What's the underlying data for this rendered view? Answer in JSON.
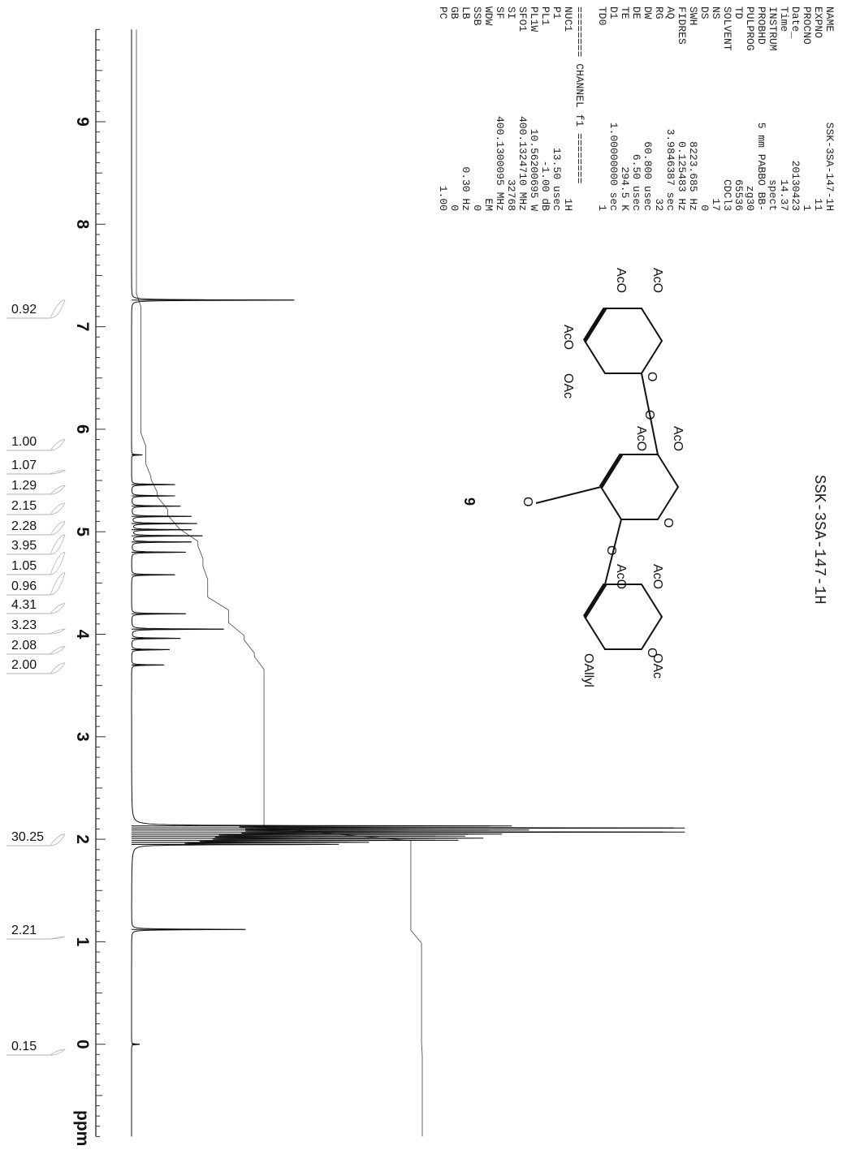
{
  "title": "SSK-3SA-147-1H",
  "acquisition_params": [
    {
      "key": "NAME",
      "value": "SSK-3SA-147-1H"
    },
    {
      "key": "EXPNO",
      "value": "11"
    },
    {
      "key": "PROCNO",
      "value": "1"
    },
    {
      "key": "Date_",
      "value": "20130423"
    },
    {
      "key": "Time",
      "value": "14.37"
    },
    {
      "key": "INSTRUM",
      "value": "spect"
    },
    {
      "key": "PROBHD",
      "value": "5 mm PABBO BB-"
    },
    {
      "key": "PULPROG",
      "value": "zg30"
    },
    {
      "key": "TD",
      "value": "65536"
    },
    {
      "key": "SOLVENT",
      "value": "CDCl3"
    },
    {
      "key": "NS",
      "value": "17"
    },
    {
      "key": "DS",
      "value": "0"
    },
    {
      "key": "SWH",
      "value": "8223.685 Hz"
    },
    {
      "key": "FIDRES",
      "value": "0.125483 Hz"
    },
    {
      "key": "AQ",
      "value": "3.9846387 sec"
    },
    {
      "key": "RG",
      "value": "32"
    },
    {
      "key": "DW",
      "value": "60.800 usec"
    },
    {
      "key": "DE",
      "value": "6.50 usec"
    },
    {
      "key": "TE",
      "value": "294.5 K"
    },
    {
      "key": "D1",
      "value": "1.00000000 sec"
    },
    {
      "key": "TD0",
      "value": "1"
    }
  ],
  "channel_header": "======== CHANNEL f1 ========",
  "channel_params": [
    {
      "key": "NUC1",
      "value": "1H"
    },
    {
      "key": "P1",
      "value": "13.50 usec"
    },
    {
      "key": "PL1",
      "value": "-1.00 dB"
    },
    {
      "key": "PL1W",
      "value": "10.56200695 W"
    },
    {
      "key": "SFO1",
      "value": "400.1324710 MHz"
    },
    {
      "key": "SI",
      "value": "32768"
    },
    {
      "key": "SF",
      "value": "400.1300095 MHz"
    },
    {
      "key": "WDW",
      "value": "EM"
    },
    {
      "key": "SSB",
      "value": "0"
    },
    {
      "key": "LB",
      "value": "0.30 Hz"
    },
    {
      "key": "GB",
      "value": "0"
    },
    {
      "key": "PC",
      "value": "1.00"
    }
  ],
  "compound_number": "9",
  "structure_labels": {
    "aco_1": "AcO",
    "aco_2": "AcO",
    "aco_3": "AcO",
    "aco_4": "AcO",
    "aco_5": "AcO",
    "aco_6": "AcO",
    "aco_7": "AcO",
    "oac_1": "OAc",
    "oac_2": "OAc",
    "oallyl": "OAllyl",
    "o_1": "O",
    "o_2": "O",
    "o_3": "O",
    "o_4": "O",
    "o_5": "O",
    "o_6": "O"
  },
  "chart_data": {
    "type": "line",
    "title": "SSK-3SA-147-1H",
    "xlabel": "ppm",
    "ylabel": "",
    "xlim": [
      9.9,
      -0.9
    ],
    "x_ticks": [
      9,
      8,
      7,
      6,
      5,
      4,
      3,
      2,
      1,
      0
    ],
    "x_tick_labels": [
      "9",
      "8",
      "7",
      "6",
      "5",
      "4",
      "3",
      "2",
      "1",
      "0"
    ],
    "ylim": [
      0,
      1
    ],
    "grid": false,
    "orientation": "rotated-90",
    "series": [
      {
        "peaks": [
          {
            "ppm": 7.26,
            "height": 0.3
          },
          {
            "ppm": 5.75,
            "height": 0.02
          },
          {
            "ppm": 5.46,
            "height": 0.08
          },
          {
            "ppm": 5.35,
            "height": 0.08
          },
          {
            "ppm": 5.25,
            "height": 0.09
          },
          {
            "ppm": 5.15,
            "height": 0.11
          },
          {
            "ppm": 5.08,
            "height": 0.12
          },
          {
            "ppm": 5.02,
            "height": 0.11
          },
          {
            "ppm": 4.96,
            "height": 0.13
          },
          {
            "ppm": 4.9,
            "height": 0.11
          },
          {
            "ppm": 4.8,
            "height": 0.1
          },
          {
            "ppm": 4.58,
            "height": 0.08
          },
          {
            "ppm": 4.2,
            "height": 0.1
          },
          {
            "ppm": 4.05,
            "height": 0.17
          },
          {
            "ppm": 3.96,
            "height": 0.09
          },
          {
            "ppm": 3.85,
            "height": 0.07
          },
          {
            "ppm": 3.7,
            "height": 0.06
          },
          {
            "ppm": 2.13,
            "height": 0.66
          },
          {
            "ppm": 2.11,
            "height": 1.0
          },
          {
            "ppm": 2.09,
            "height": 0.66
          },
          {
            "ppm": 2.07,
            "height": 0.98
          },
          {
            "ppm": 2.05,
            "height": 0.62
          },
          {
            "ppm": 2.03,
            "height": 0.56
          },
          {
            "ppm": 2.01,
            "height": 0.6
          },
          {
            "ppm": 1.99,
            "height": 0.56
          },
          {
            "ppm": 1.97,
            "height": 0.4
          },
          {
            "ppm": 1.95,
            "height": 0.36
          },
          {
            "ppm": 1.12,
            "height": 0.21
          },
          {
            "ppm": 0.0,
            "height": 0.015
          }
        ]
      }
    ],
    "integrals": [
      {
        "ppm": 7.26,
        "value": "0.92"
      },
      {
        "ppm": 5.9,
        "value": "1.00"
      },
      {
        "ppm": 5.6,
        "value": "1.07"
      },
      {
        "ppm": 5.45,
        "value": "1.29"
      },
      {
        "ppm": 5.28,
        "value": "2.15"
      },
      {
        "ppm": 5.1,
        "value": "2.28"
      },
      {
        "ppm": 4.97,
        "value": "3.95"
      },
      {
        "ppm": 4.8,
        "value": "1.05"
      },
      {
        "ppm": 4.6,
        "value": "0.96"
      },
      {
        "ppm": 4.3,
        "value": "4.31"
      },
      {
        "ppm": 4.05,
        "value": "3.23"
      },
      {
        "ppm": 3.88,
        "value": "2.08"
      },
      {
        "ppm": 3.72,
        "value": "2.00"
      },
      {
        "ppm": 2.05,
        "value": "30.25"
      },
      {
        "ppm": 1.05,
        "value": "2.21"
      },
      {
        "ppm": -0.05,
        "value": "0.15"
      }
    ]
  }
}
